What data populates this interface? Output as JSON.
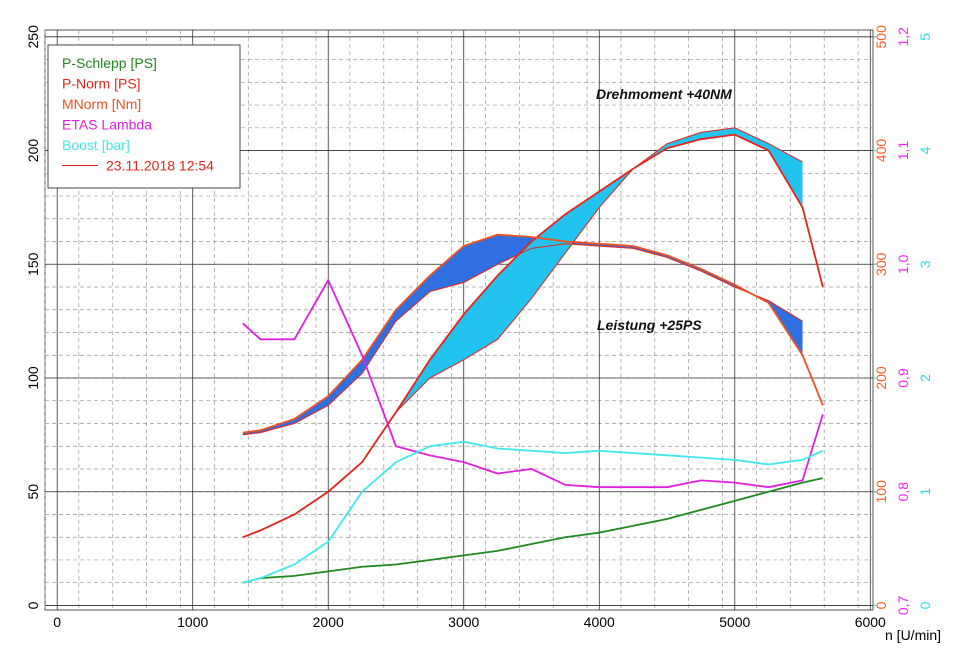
{
  "chart_data": {
    "type": "line",
    "x_label": "n [U/min]",
    "annotations": [
      "Drehmoment +40NM",
      "Leistung +25PS"
    ],
    "x": [
      1370,
      1500,
      1750,
      2000,
      2250,
      2500,
      2750,
      3000,
      3250,
      3500,
      3750,
      4000,
      4250,
      4500,
      4750,
      5000,
      5250,
      5500,
      5650
    ],
    "xlim": [
      -90,
      6020
    ],
    "xticks": [
      0,
      1000,
      2000,
      3000,
      4000,
      5000,
      6000
    ],
    "ylim": [
      -2,
      253
    ],
    "yticks": [
      0,
      50,
      100,
      150,
      200,
      250
    ],
    "y2lim": [
      -4,
      506
    ],
    "y2ticks": [
      0,
      100,
      200,
      300,
      400,
      500
    ],
    "y2color": "#ff5a1e",
    "y3lim": [
      0.696,
      1.206
    ],
    "y3ticks": [
      {
        "value": 0.7,
        "label": "0,7"
      },
      {
        "value": 0.8,
        "label": "0,8"
      },
      {
        "value": 0.9,
        "label": "0,9"
      },
      {
        "value": 1.0,
        "label": "1,0"
      },
      {
        "value": 1.1,
        "label": "1,1"
      },
      {
        "value": 1.2,
        "label": "1,2"
      }
    ],
    "y3color": "#ff22ff",
    "y4lim": [
      -0.04,
      5.06
    ],
    "y4ticks": [
      0,
      1,
      2,
      3,
      4,
      5
    ],
    "y4color": "#22e0f0",
    "grid": true,
    "power_fill": "#22c3ee",
    "torque_fill": "#2f6fe0",
    "series": [
      {
        "name": "P-Schlepp [PS]",
        "color": "#1e8a1e",
        "values": [
          10,
          12,
          13,
          15,
          17,
          18,
          20,
          22,
          24,
          27,
          30,
          32,
          35,
          38,
          42,
          46,
          50,
          54,
          56
        ]
      },
      {
        "name": "P-Norm [PS]",
        "color": "#e8231a",
        "values": [
          30,
          33,
          40,
          50,
          63,
          85,
          108,
          128,
          145,
          160,
          172,
          182,
          192,
          201,
          205,
          207,
          200,
          175,
          140
        ]
      },
      {
        "name": "MNorm [Nm]",
        "color": "#f0501e",
        "axis": "y2",
        "values": [
          152,
          154,
          164,
          184,
          216,
          260,
          290,
          316,
          326,
          324,
          320,
          318,
          316,
          308,
          296,
          282,
          266,
          220,
          176
        ]
      },
      {
        "name": "ETAS Lambda",
        "color": "#e020e0",
        "axis": "y3",
        "values": [
          0.948,
          0.934,
          0.934,
          0.986,
          0.92,
          0.84,
          0.832,
          0.826,
          0.816,
          0.82,
          0.806,
          0.804,
          0.804,
          0.804,
          0.81,
          0.808,
          0.804,
          0.81,
          0.868
        ]
      },
      {
        "name": "Boost [bar]",
        "color": "#40e8f0",
        "axis": "y4",
        "values": [
          0.2,
          0.24,
          0.36,
          0.56,
          1.0,
          1.26,
          1.4,
          1.44,
          1.38,
          1.36,
          1.34,
          1.36,
          1.34,
          1.32,
          1.3,
          1.28,
          1.24,
          1.28,
          1.36
        ]
      },
      {
        "name": "23.11.2018 12:54",
        "color": "#e8231a",
        "values": [
          30,
          33,
          40,
          50,
          63,
          85,
          100,
          108,
          117,
          135,
          155,
          175,
          192,
          203,
          208,
          210,
          203,
          195,
          null
        ],
        "torque_values": [
          150,
          152,
          160,
          176,
          204,
          250,
          276,
          284,
          300,
          314,
          318,
          316,
          314,
          306,
          294,
          280,
          268,
          250,
          null
        ]
      }
    ]
  }
}
